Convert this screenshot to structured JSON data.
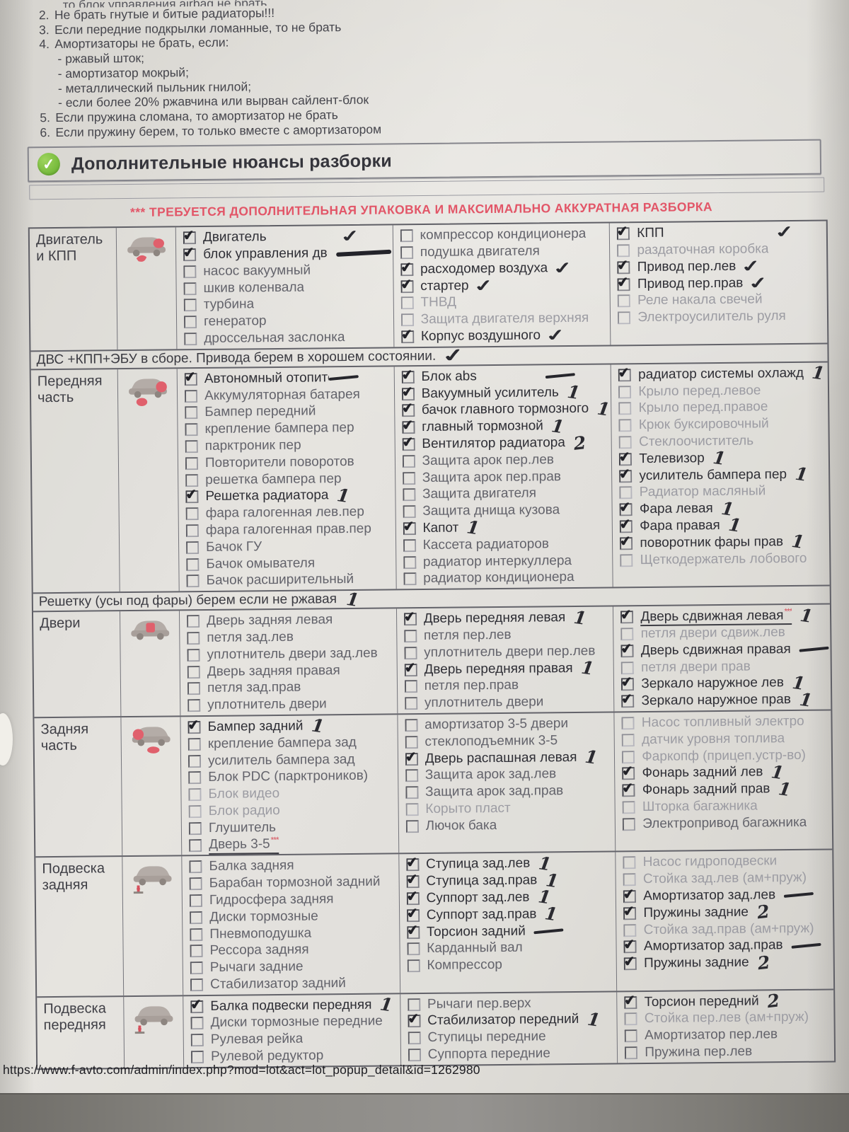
{
  "top_rules": {
    "clipped_line": "то блок управления airbag не брать",
    "items": [
      {
        "num": "2.",
        "text": "Не брать гнутые и битые радиаторы!!!"
      },
      {
        "num": "3.",
        "text": "Если передние подкрылки ломанные, то не брать"
      },
      {
        "num": "4.",
        "text": "Амортизаторы не брать, если:"
      },
      {
        "num": "",
        "text": "- ржавый шток;",
        "sub": true
      },
      {
        "num": "",
        "text": "- амортизатор мокрый;",
        "sub": true
      },
      {
        "num": "",
        "text": "- металлический пыльник гнилой;",
        "sub": true
      },
      {
        "num": "",
        "text": "- если более 20% ржавчина или вырван сайлент-блок",
        "sub": true
      },
      {
        "num": "5.",
        "text": "Если пружина сломана, то амортизатор не брать"
      },
      {
        "num": "6.",
        "text": "Если пружину берем, то только вместе с амортизатором"
      }
    ]
  },
  "header": {
    "title": "Дополнительные нюансы разборки",
    "ok_icon": "✓"
  },
  "warning": "*** ТРЕБУЕТСЯ ДОПОЛНИТЕЛЬНАЯ УПАКОВКА И МАКСИМАЛЬНО АККУРАТНАЯ РАЗБОРКА",
  "ink_color": "#2b2b31",
  "accent_red": "#e0606c",
  "accent_green": "#74b93a",
  "sections": [
    {
      "label": "Двигатель и КПП",
      "icon": "car-engine-icon",
      "columns": [
        [
          {
            "t": "Двигатель",
            "c": true,
            "m": "check",
            "far": true
          },
          {
            "t": "блок управления двс",
            "c": true,
            "m": "scribble"
          },
          {
            "t": "насос вакуумный"
          },
          {
            "t": "шкив коленвала"
          },
          {
            "t": "турбина"
          },
          {
            "t": "генератор"
          },
          {
            "t": "дроссельная заслонка"
          }
        ],
        [
          {
            "t": "компрессор кондиционера"
          },
          {
            "t": "подушка двигателя"
          },
          {
            "t": "расходомер воздуха",
            "c": true,
            "m": "check"
          },
          {
            "t": "стартер",
            "c": true,
            "m": "check"
          },
          {
            "t": "ТНВД",
            "dim": true
          },
          {
            "t": "Защита двигателя верхняя",
            "dim": true
          },
          {
            "t": "Корпус воздушного",
            "c": true,
            "m": "check"
          }
        ],
        [
          {
            "t": "КПП",
            "c": true,
            "m": "check",
            "far": true
          },
          {
            "t": "раздаточная коробка",
            "dim": true
          },
          {
            "t": "Привод пер.лев",
            "c": true,
            "m": "check"
          },
          {
            "t": "Привод пер.прав",
            "c": true,
            "m": "check"
          },
          {
            "t": "Реле накала свечей",
            "dim": true
          },
          {
            "t": "Электроусилитель руля",
            "dim": true
          }
        ]
      ],
      "note_after": {
        "text": "ДВС +КПП+ЭБУ в сборе. Привода берем в хорошем состоянии.",
        "mark": "check"
      }
    },
    {
      "label": "Передняя часть",
      "icon": "car-front-icon",
      "columns": [
        [
          {
            "t": "Автономный отопитель",
            "c": true,
            "m": "dash",
            "far": true
          },
          {
            "t": "Аккумуляторная батарея"
          },
          {
            "t": "Бампер передний"
          },
          {
            "t": "крепление бампера пер"
          },
          {
            "t": "парктроник пер"
          },
          {
            "t": "Повторители поворотов"
          },
          {
            "t": "решетка бампера пер"
          },
          {
            "t": "Решетка радиатора",
            "c": true,
            "m": "one"
          },
          {
            "t": "фара галогенная лев.пер"
          },
          {
            "t": "фара галогенная прав.пер"
          },
          {
            "t": "Бачок ГУ"
          },
          {
            "t": "Бачок омывателя"
          },
          {
            "t": "Бачок расширительный"
          }
        ],
        [
          {
            "t": "Блок abs",
            "c": true,
            "m": "dash",
            "far": true
          },
          {
            "t": "Вакуумный усилитель",
            "c": true,
            "m": "one"
          },
          {
            "t": "бачок главного тормозного",
            "c": true,
            "m": "one"
          },
          {
            "t": "главный тормозной",
            "c": true,
            "m": "one"
          },
          {
            "t": "Вентилятор радиатора",
            "c": true,
            "m": "two"
          },
          {
            "t": "Защита арок пер.лев"
          },
          {
            "t": "Защита арок пер.прав"
          },
          {
            "t": "Защита двигателя"
          },
          {
            "t": "Защита днища кузова"
          },
          {
            "t": "Капот",
            "c": true,
            "m": "one"
          },
          {
            "t": "Кассета радиаторов"
          },
          {
            "t": "радиатор интеркуллера"
          },
          {
            "t": "радиатор кондиционера"
          }
        ],
        [
          {
            "t": "радиатор системы охлажд",
            "c": true,
            "m": "one"
          },
          {
            "t": "Крыло перед.левое",
            "dim": true
          },
          {
            "t": "Крыло перед.правое",
            "dim": true
          },
          {
            "t": "Крюк буксировочный",
            "dim": true
          },
          {
            "t": "Стеклоочиститель",
            "dim": true
          },
          {
            "t": "Телевизор",
            "c": true,
            "m": "one"
          },
          {
            "t": "усилитель бампера пер",
            "c": true,
            "m": "one"
          },
          {
            "t": "Радиатор масляный",
            "dim": true
          },
          {
            "t": "Фара левая",
            "c": true,
            "m": "one"
          },
          {
            "t": "Фара правая",
            "c": true,
            "m": "one"
          },
          {
            "t": "поворотник фары прав",
            "c": true,
            "m": "one"
          },
          {
            "t": "Щеткодержатель лобового",
            "dim": true
          }
        ]
      ],
      "note_after": {
        "text": "Решетку (усы под фары) берем если не ржавая",
        "mark": "one"
      }
    },
    {
      "label": "Двери",
      "icon": "car-doors-icon",
      "columns": [
        [
          {
            "t": "Дверь задняя левая"
          },
          {
            "t": "петля зад.лев"
          },
          {
            "t": "уплотнитель двери зад.лев"
          },
          {
            "t": "Дверь задняя правая"
          },
          {
            "t": "петля зад.прав"
          },
          {
            "t": "уплотнитель двери"
          }
        ],
        [
          {
            "t": "Дверь передняя левая",
            "c": true,
            "m": "one"
          },
          {
            "t": "петля пер.лев"
          },
          {
            "t": "уплотнитель двери пер.лев"
          },
          {
            "t": "Дверь передняя правая",
            "c": true,
            "m": "one"
          },
          {
            "t": "петля пер.прав"
          },
          {
            "t": "уплотнитель двери"
          }
        ],
        [
          {
            "t": "Дверь сдвижная левая",
            "c": true,
            "m": "one",
            "stars": true,
            "ul": true
          },
          {
            "t": "петля двери сдвиж.лев",
            "dim": true
          },
          {
            "t": "Дверь сдвижная правая",
            "c": true,
            "m": "dash"
          },
          {
            "t": "петля двери прав",
            "dim": true
          },
          {
            "t": "Зеркало наружное лев",
            "c": true,
            "m": "one"
          },
          {
            "t": "Зеркало наружное прав",
            "c": true,
            "m": "one"
          }
        ]
      ]
    },
    {
      "label": "Задняя часть",
      "icon": "car-rear-icon",
      "columns": [
        [
          {
            "t": "Бампер задний",
            "c": true,
            "m": "one"
          },
          {
            "t": "крепление бампера зад"
          },
          {
            "t": "усилитель бампера зад"
          },
          {
            "t": "Блок PDC (парктроников)"
          },
          {
            "t": "Блок видео",
            "dim": true
          },
          {
            "t": "Блок радио",
            "dim": true
          },
          {
            "t": "Глушитель"
          },
          {
            "t": "Дверь 3-5",
            "stars": true,
            "ul": true
          }
        ],
        [
          {
            "t": "амортизатор 3-5 двери"
          },
          {
            "t": "стеклоподъемник 3-5"
          },
          {
            "t": "Дверь распашная левая",
            "c": true,
            "m": "one"
          },
          {
            "t": "Защита арок зад.лев"
          },
          {
            "t": "Защита арок зад.прав"
          },
          {
            "t": "Корыто пласт",
            "dim": true
          },
          {
            "t": "Лючок бака"
          }
        ],
        [
          {
            "t": "Насос топливный электро",
            "dim": true
          },
          {
            "t": "датчик уровня топлива",
            "dim": true
          },
          {
            "t": "Фаркопф (прицеп.устр-во)",
            "dim": true
          },
          {
            "t": "Фонарь задний лев",
            "c": true,
            "m": "one"
          },
          {
            "t": "Фонарь задний прав",
            "c": true,
            "m": "one"
          },
          {
            "t": "Шторка багажника",
            "dim": true
          },
          {
            "t": "Электропривод багажника"
          }
        ]
      ]
    },
    {
      "label": "Подвеска задняя",
      "icon": "suspension-icon",
      "columns": [
        [
          {
            "t": "Балка задняя"
          },
          {
            "t": "Барабан тормозной задний"
          },
          {
            "t": "Гидросфера задняя"
          },
          {
            "t": "Диски тормозные"
          },
          {
            "t": "Пневмоподушка"
          },
          {
            "t": "Рессора задняя"
          },
          {
            "t": "Рычаги задние"
          },
          {
            "t": "Стабилизатор задний"
          }
        ],
        [
          {
            "t": "Ступица зад.лев",
            "c": true,
            "m": "one"
          },
          {
            "t": "Ступица зад.прав",
            "c": true,
            "m": "one"
          },
          {
            "t": "Суппорт зад.лев",
            "c": true,
            "m": "one"
          },
          {
            "t": "Суппорт зад.прав",
            "c": true,
            "m": "one"
          },
          {
            "t": "Торсион задний",
            "c": true,
            "m": "dash"
          },
          {
            "t": "Карданный вал"
          },
          {
            "t": "Компрессор"
          }
        ],
        [
          {
            "t": "Насос гидроподвески",
            "dim": true
          },
          {
            "t": "Стойка зад.лев (ам+пруж)",
            "dim": true
          },
          {
            "t": "Амортизатор зад.лев",
            "c": true,
            "m": "dash"
          },
          {
            "t": "Пружины задние",
            "c": true,
            "m": "two"
          },
          {
            "t": "Стойка зад.прав (ам+пруж)",
            "dim": true
          },
          {
            "t": "Амортизатор зад.прав",
            "c": true,
            "m": "dash"
          },
          {
            "t": "Пружины задние",
            "c": true,
            "m": "two"
          }
        ]
      ]
    },
    {
      "label": "Подвеска передняя",
      "icon": "suspension-icon",
      "columns": [
        [
          {
            "t": "Балка подвески передняя",
            "c": true,
            "m": "one"
          },
          {
            "t": "Диски тормозные передние"
          },
          {
            "t": "Рулевая рейка"
          },
          {
            "t": "Рулевой редуктор"
          }
        ],
        [
          {
            "t": "Рычаги пер.верх"
          },
          {
            "t": "Стабилизатор передний",
            "c": true,
            "m": "one"
          },
          {
            "t": "Ступицы передние"
          },
          {
            "t": "Суппорта передние"
          }
        ],
        [
          {
            "t": "Торсион передний",
            "c": true,
            "m": "two"
          },
          {
            "t": "Стойка пер.лев (ам+пруж)",
            "dim": true
          },
          {
            "t": "Амортизатор пер.лев"
          },
          {
            "t": "Пружина пер.лев"
          }
        ]
      ]
    }
  ],
  "url": "https://www.f-avto.com/admin/index.php?mod=lot&act=lot_popup_detail&id=1262980"
}
